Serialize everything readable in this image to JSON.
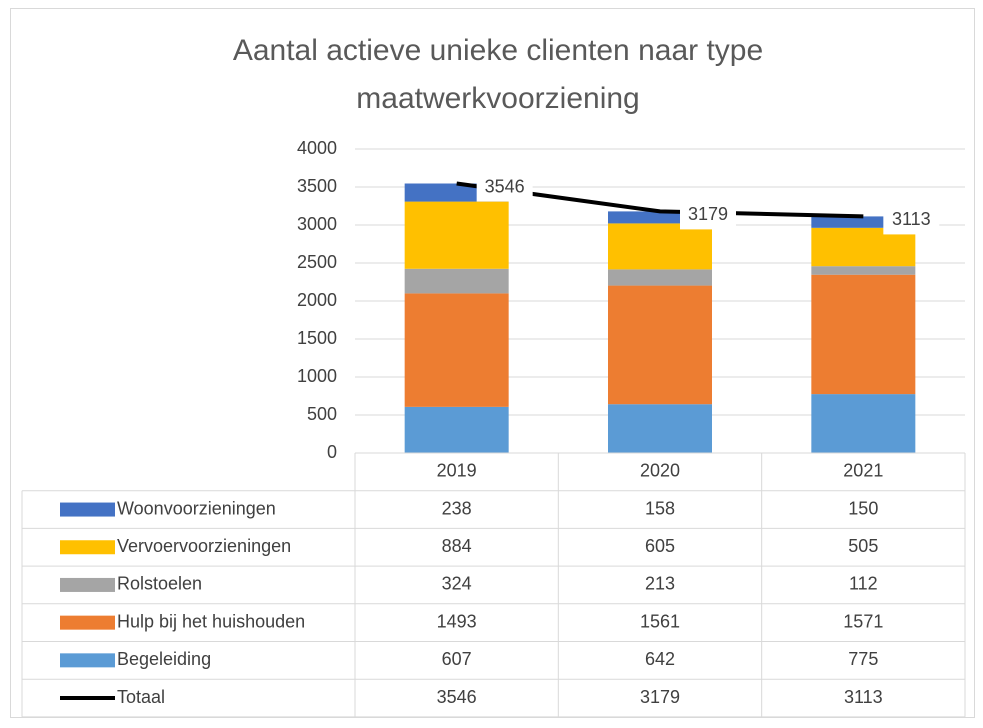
{
  "chart_data": {
    "type": "bar",
    "stacked": true,
    "data_table": true,
    "title": "Aantal actieve unieke clienten naar type maatwerkvoorziening",
    "categories": [
      "2019",
      "2020",
      "2021"
    ],
    "series": [
      {
        "name": "Woonvoorzieningen",
        "color": "#4472c4",
        "values": [
          238,
          158,
          150
        ]
      },
      {
        "name": "Vervoervoorzieningen",
        "color": "#ffc000",
        "values": [
          884,
          605,
          505
        ]
      },
      {
        "name": "Rolstoelen",
        "color": "#a5a5a5",
        "values": [
          324,
          213,
          112
        ]
      },
      {
        "name": "Hulp bij het huishouden",
        "color": "#ed7d31",
        "values": [
          1493,
          1561,
          1571
        ]
      },
      {
        "name": "Begeleiding",
        "color": "#5b9bd5",
        "values": [
          607,
          642,
          775
        ]
      },
      {
        "name": "Totaal",
        "type": "line",
        "color": "#000000",
        "values": [
          3546,
          3179,
          3113
        ],
        "data_labels": true
      }
    ],
    "ylim": [
      0,
      4000
    ],
    "yticks": [
      0,
      500,
      1000,
      1500,
      2000,
      2500,
      3000,
      3500,
      4000
    ],
    "grid": true
  }
}
